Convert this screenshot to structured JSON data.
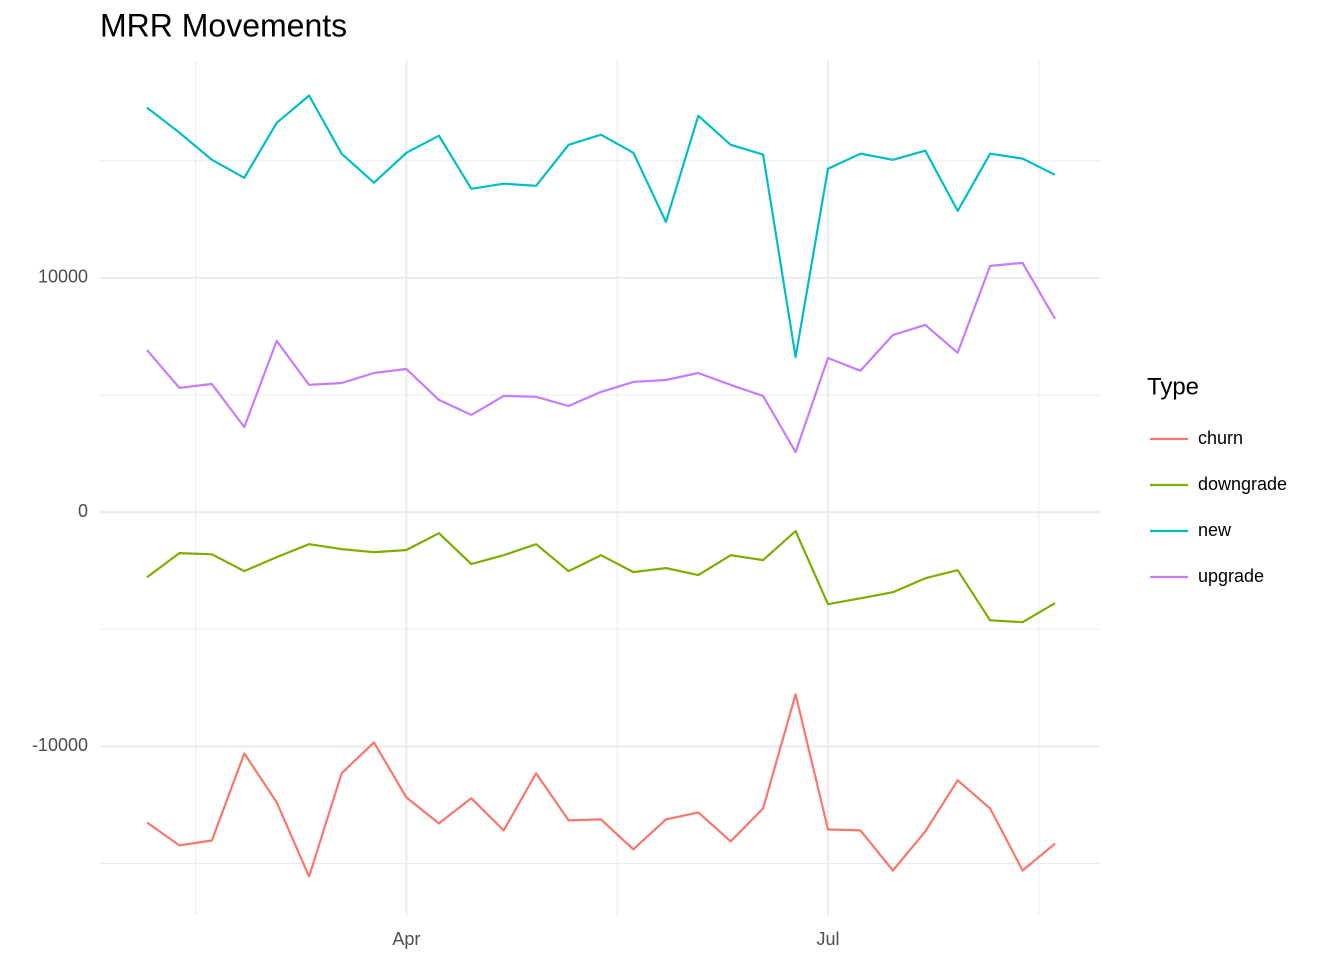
{
  "chart_data": {
    "type": "line",
    "title": "MRR Movements",
    "categories": [
      null,
      null,
      null,
      null,
      null,
      null,
      null,
      null,
      "Apr",
      null,
      null,
      null,
      null,
      null,
      null,
      null,
      null,
      null,
      null,
      null,
      null,
      "Jul",
      null,
      null,
      null,
      null,
      null,
      null,
      null
    ],
    "series": [
      {
        "name": "churn",
        "color": "#F8766D",
        "values": [
          -13250,
          -14230,
          -14020,
          -10300,
          -12390,
          -15560,
          -11150,
          -9830,
          -12180,
          -13290,
          -12220,
          -13590,
          -11150,
          -13160,
          -13120,
          -14400,
          -13120,
          -12820,
          -14060,
          -12650,
          -7780,
          -13550,
          -13590,
          -15300,
          -13630,
          -11450,
          -12650,
          -15300,
          -14150
        ]
      },
      {
        "name": "downgrade",
        "color": "#7CAE00",
        "values": [
          -2780,
          -1750,
          -1800,
          -2520,
          -1920,
          -1370,
          -1580,
          -1710,
          -1620,
          -900,
          -2220,
          -1840,
          -1370,
          -2520,
          -1840,
          -2560,
          -2390,
          -2690,
          -1840,
          -2050,
          -810,
          -3930,
          -3680,
          -3420,
          -2820,
          -2480,
          -4620,
          -4700,
          -3890
        ]
      },
      {
        "name": "new",
        "color": "#00BFC4",
        "values": [
          17270,
          16200,
          15040,
          14270,
          16620,
          17780,
          15300,
          14060,
          15340,
          16070,
          13800,
          14020,
          13930,
          15680,
          16110,
          15340,
          12390,
          16920,
          15680,
          15260,
          6620,
          14660,
          15300,
          15040,
          15430,
          12860,
          15300,
          15090,
          14400
        ]
      },
      {
        "name": "upgrade",
        "color": "#C77CFF",
        "values": [
          6920,
          5300,
          5470,
          3630,
          7310,
          5430,
          5510,
          5940,
          6110,
          4790,
          4150,
          4960,
          4920,
          4530,
          5130,
          5560,
          5640,
          5940,
          5430,
          4960,
          2560,
          6580,
          6030,
          7560,
          7990,
          6800,
          10510,
          10640,
          8250
        ]
      }
    ],
    "ylim": [
      -17200,
      19300
    ],
    "yticks": [
      -10000,
      0,
      10000
    ],
    "grid": true,
    "legend_title": "Type",
    "legend_position": "right"
  }
}
